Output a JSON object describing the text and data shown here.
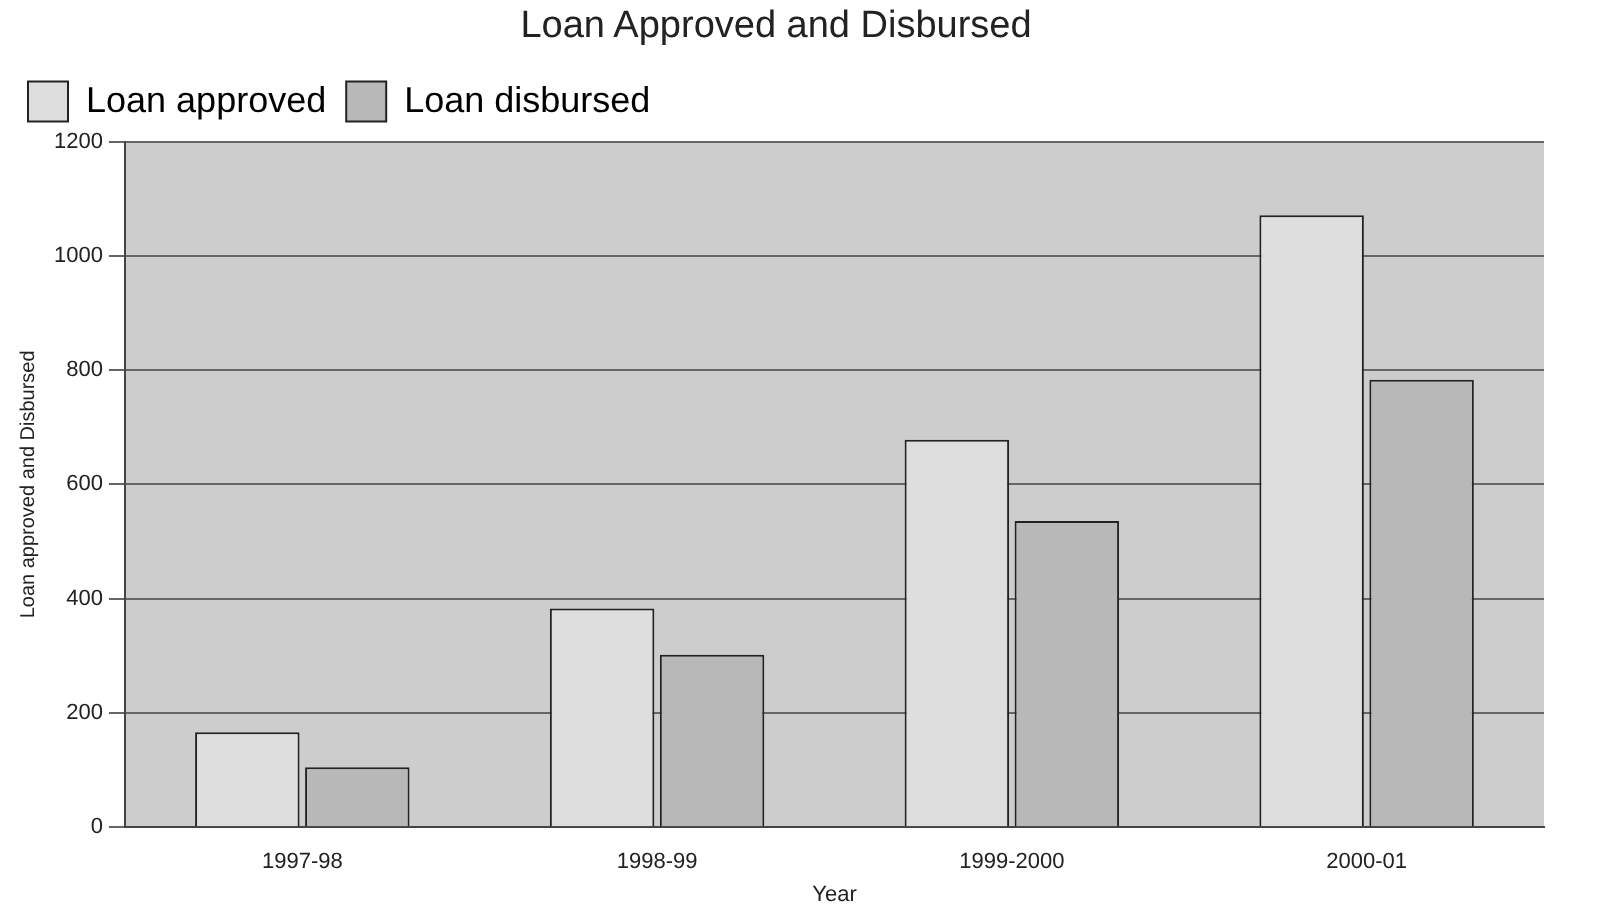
{
  "chart_data": {
    "type": "bar",
    "title": "Loan Approved and Disbursed",
    "xlabel": "Year",
    "ylabel": "Loan approved and Disbursed",
    "categories": [
      "1997-98",
      "1998-99",
      "1999-2000",
      "2000-01"
    ],
    "series": [
      {
        "name": "Loan approved",
        "color": "#dedede",
        "values": [
          166,
          383,
          678,
          1071
        ]
      },
      {
        "name": "Loan disbursed",
        "color": "#b8b8b8",
        "values": [
          105,
          302,
          536,
          783
        ]
      }
    ],
    "ylim": [
      0,
      1200
    ],
    "yticks": [
      0,
      200,
      400,
      600,
      800,
      1000,
      1200
    ],
    "grid": "y",
    "legend": "top left"
  }
}
